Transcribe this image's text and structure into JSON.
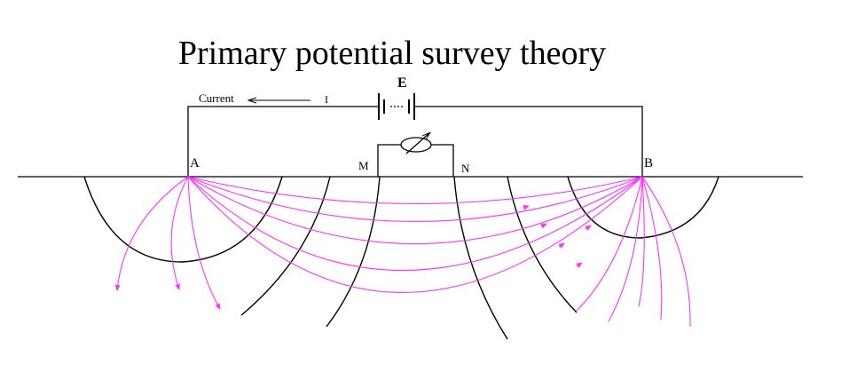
{
  "title": "Primary potential survey theory",
  "labels": {
    "current": "Current",
    "current_symbol": "I",
    "source": "E",
    "electrode_a": "A",
    "electrode_b": "B",
    "electrode_m": "M",
    "electrode_n": "N"
  }
}
